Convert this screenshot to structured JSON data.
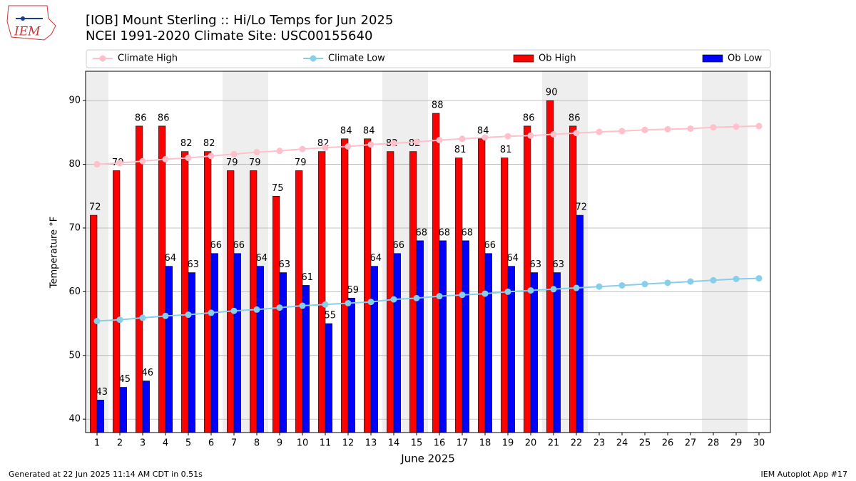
{
  "chart_data": {
    "type": "bar-line",
    "title": "[IOB] Mount Sterling :: Hi/Lo Temps for Jun 2025",
    "subtitle": "NCEI 1991-2020 Climate Site: USC00155640",
    "logo": "IEM",
    "xlabel": "June 2025",
    "ylabel": "Temperature °F",
    "footer_left": "Generated at 22 Jun 2025 11:14 AM CDT in 0.51s",
    "footer_right": "IEM Autoplot App #17",
    "x": [
      1,
      2,
      3,
      4,
      5,
      6,
      7,
      8,
      9,
      10,
      11,
      12,
      13,
      14,
      15,
      16,
      17,
      18,
      19,
      20,
      21,
      22,
      23,
      24,
      25,
      26,
      27,
      28,
      29,
      30
    ],
    "xticks": [
      1,
      2,
      3,
      4,
      5,
      6,
      7,
      8,
      9,
      10,
      11,
      12,
      13,
      14,
      15,
      16,
      17,
      18,
      19,
      20,
      21,
      22,
      23,
      24,
      25,
      26,
      27,
      28,
      29,
      30
    ],
    "xlim": [
      0.5,
      30.5
    ],
    "ylim": [
      37.9,
      94.6
    ],
    "yticks": [
      40,
      50,
      60,
      70,
      80,
      90
    ],
    "grid": true,
    "shaded_x": [
      1,
      7,
      8,
      14,
      15,
      21,
      22,
      28,
      29
    ],
    "shade_color": "#eeeeee",
    "legend": "top",
    "series": [
      {
        "name": "Climate High",
        "kind": "line",
        "color": "#ffc0cb",
        "values": [
          80.0,
          80.2,
          80.5,
          80.8,
          81.0,
          81.3,
          81.6,
          81.9,
          82.1,
          82.4,
          82.6,
          82.8,
          83.1,
          83.3,
          83.5,
          83.8,
          84.0,
          84.2,
          84.4,
          84.5,
          84.7,
          84.9,
          85.1,
          85.2,
          85.4,
          85.5,
          85.6,
          85.8,
          85.9,
          86.0
        ]
      },
      {
        "name": "Climate Low",
        "kind": "line",
        "color": "#87ceeb",
        "values": [
          55.4,
          55.6,
          55.9,
          56.2,
          56.4,
          56.7,
          57.0,
          57.2,
          57.5,
          57.8,
          58.0,
          58.2,
          58.4,
          58.8,
          59.0,
          59.3,
          59.5,
          59.7,
          60.0,
          60.2,
          60.4,
          60.6,
          60.8,
          61.0,
          61.2,
          61.4,
          61.6,
          61.8,
          62.0,
          62.1
        ]
      },
      {
        "name": "Ob High",
        "kind": "bar",
        "color": "#ff0000",
        "offset": -0.15,
        "values": [
          72,
          79,
          86,
          86,
          82,
          82,
          79,
          79,
          75,
          79,
          82,
          84,
          84,
          82,
          82,
          88,
          81,
          84,
          81,
          86,
          90,
          86,
          null,
          null,
          null,
          null,
          null,
          null,
          null,
          null
        ]
      },
      {
        "name": "Ob Low",
        "kind": "bar",
        "color": "#0000ff",
        "offset": 0.15,
        "values": [
          43,
          45,
          46,
          64,
          63,
          66,
          66,
          64,
          63,
          61,
          55,
          59,
          64,
          66,
          68,
          68,
          68,
          66,
          64,
          63,
          63,
          72,
          null,
          null,
          null,
          null,
          null,
          null,
          null,
          null
        ]
      }
    ]
  }
}
